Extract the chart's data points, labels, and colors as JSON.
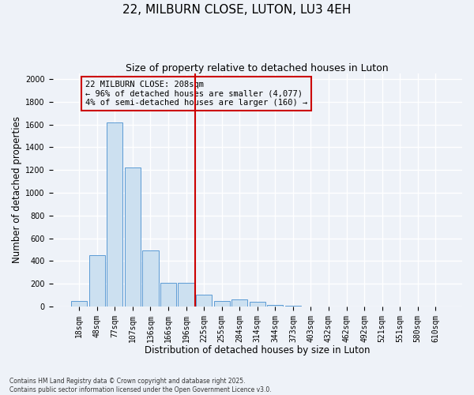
{
  "title": "22, MILBURN CLOSE, LUTON, LU3 4EH",
  "subtitle": "Size of property relative to detached houses in Luton",
  "xlabel": "Distribution of detached houses by size in Luton",
  "ylabel": "Number of detached properties",
  "categories": [
    "18sqm",
    "48sqm",
    "77sqm",
    "107sqm",
    "136sqm",
    "166sqm",
    "196sqm",
    "225sqm",
    "255sqm",
    "284sqm",
    "314sqm",
    "344sqm",
    "373sqm",
    "403sqm",
    "432sqm",
    "462sqm",
    "492sqm",
    "521sqm",
    "551sqm",
    "580sqm",
    "610sqm"
  ],
  "values": [
    50,
    450,
    1620,
    1220,
    490,
    210,
    210,
    100,
    50,
    60,
    40,
    10,
    5,
    2,
    1,
    1,
    1,
    1,
    1,
    1,
    1
  ],
  "bar_color": "#cce0f0",
  "bar_edge_color": "#5b9bd5",
  "vline_x_index": 6.5,
  "vline_color": "#cc0000",
  "annotation_text": "22 MILBURN CLOSE: 208sqm\n← 96% of detached houses are smaller (4,077)\n4% of semi-detached houses are larger (160) →",
  "annotation_box_color": "#cc0000",
  "ylim": [
    0,
    2050
  ],
  "yticks": [
    0,
    200,
    400,
    600,
    800,
    1000,
    1200,
    1400,
    1600,
    1800,
    2000
  ],
  "footer_text": "Contains HM Land Registry data © Crown copyright and database right 2025.\nContains public sector information licensed under the Open Government Licence v3.0.",
  "background_color": "#eef2f8",
  "grid_color": "#ffffff",
  "title_fontsize": 11,
  "subtitle_fontsize": 9,
  "tick_fontsize": 7,
  "label_fontsize": 8.5,
  "annotation_fontsize": 7.5
}
